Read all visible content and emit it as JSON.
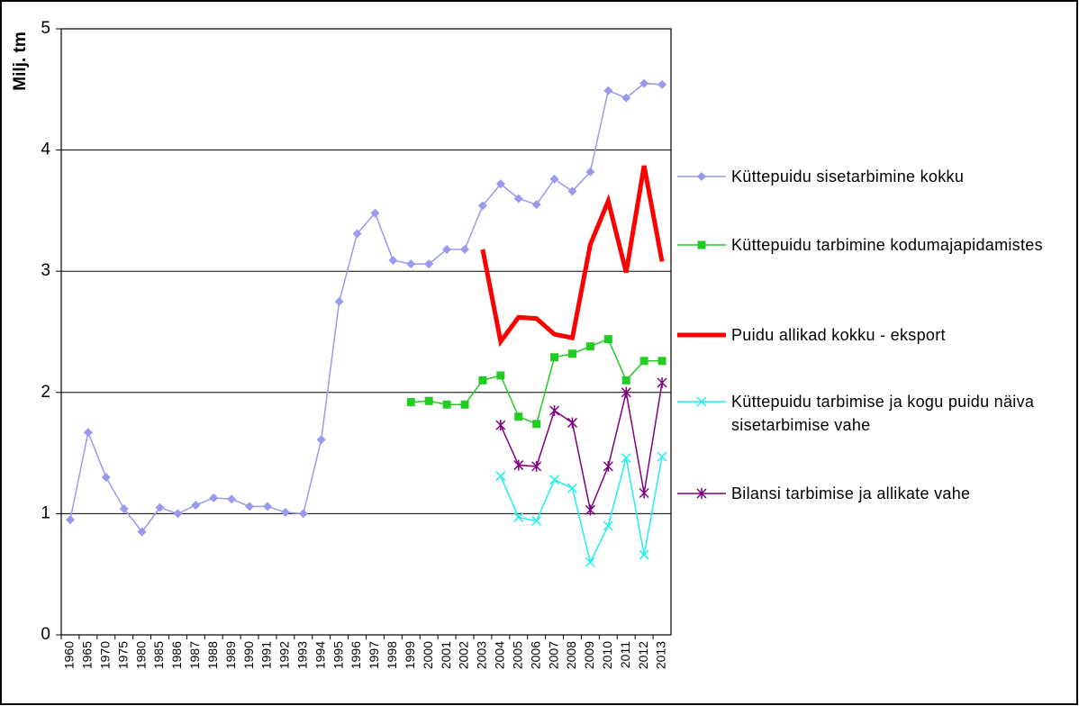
{
  "chart_data": {
    "type": "line",
    "y_label": "Milj. tm",
    "categories": [
      "1960",
      "1965",
      "1970",
      "1975",
      "1980",
      "1985",
      "1986",
      "1987",
      "1988",
      "1989",
      "1990",
      "1991",
      "1992",
      "1993",
      "1994",
      "1995",
      "1996",
      "1997",
      "1998",
      "1999",
      "2000",
      "2001",
      "2002",
      "2003",
      "2004",
      "2005",
      "2006",
      "2007",
      "2008",
      "2009",
      "2010",
      "2011",
      "2012",
      "2013"
    ],
    "ylim": [
      0,
      5
    ],
    "yticks": [
      0,
      1,
      2,
      3,
      4,
      5
    ],
    "grid": true,
    "series": [
      {
        "name": "Küttepuidu sisetarbimine kokku",
        "color": "#9999ee",
        "marker": "diamond",
        "width": 1.5,
        "values": [
          0.95,
          1.67,
          1.3,
          1.04,
          0.85,
          1.05,
          1.0,
          1.07,
          1.13,
          1.12,
          1.06,
          1.06,
          1.01,
          1.0,
          1.61,
          2.75,
          3.31,
          3.48,
          3.09,
          3.06,
          3.06,
          3.18,
          3.18,
          3.54,
          3.72,
          3.6,
          3.55,
          3.76,
          3.66,
          3.82,
          4.49,
          4.43,
          4.55,
          4.54
        ]
      },
      {
        "name": "Küttepuidu tarbimine kodumajapidamistes",
        "color": "#22cc22",
        "marker": "square",
        "width": 1.5,
        "values": [
          null,
          null,
          null,
          null,
          null,
          null,
          null,
          null,
          null,
          null,
          null,
          null,
          null,
          null,
          null,
          null,
          null,
          null,
          null,
          1.92,
          1.93,
          1.9,
          1.9,
          2.1,
          2.14,
          1.8,
          1.74,
          2.29,
          2.32,
          2.38,
          2.44,
          2.1,
          2.26,
          2.26
        ]
      },
      {
        "name": "Puidu allikad kokku - eksport",
        "color": "#ff0000",
        "marker": "none",
        "width": 5,
        "values": [
          null,
          null,
          null,
          null,
          null,
          null,
          null,
          null,
          null,
          null,
          null,
          null,
          null,
          null,
          null,
          null,
          null,
          null,
          null,
          null,
          null,
          null,
          null,
          3.18,
          2.42,
          2.62,
          2.61,
          2.48,
          2.45,
          3.22,
          3.58,
          2.99,
          3.87,
          3.08
        ]
      },
      {
        "name": "Küttepuidu tarbimise ja kogu puidu näiva sisetarbimise vahe",
        "color": "#22eeee",
        "marker": "x",
        "width": 1.5,
        "values": [
          null,
          null,
          null,
          null,
          null,
          null,
          null,
          null,
          null,
          null,
          null,
          null,
          null,
          null,
          null,
          null,
          null,
          null,
          null,
          null,
          null,
          null,
          null,
          null,
          1.31,
          0.97,
          0.94,
          1.28,
          1.21,
          0.6,
          0.9,
          1.46,
          0.66,
          1.47
        ]
      },
      {
        "name": "Bilansi tarbimise ja allikate vahe",
        "color": "#800080",
        "marker": "star",
        "width": 1.5,
        "values": [
          null,
          null,
          null,
          null,
          null,
          null,
          null,
          null,
          null,
          null,
          null,
          null,
          null,
          null,
          null,
          null,
          null,
          null,
          null,
          null,
          null,
          null,
          null,
          null,
          1.73,
          1.4,
          1.39,
          1.85,
          1.75,
          1.03,
          1.39,
          2.0,
          1.17,
          2.08
        ]
      }
    ]
  }
}
